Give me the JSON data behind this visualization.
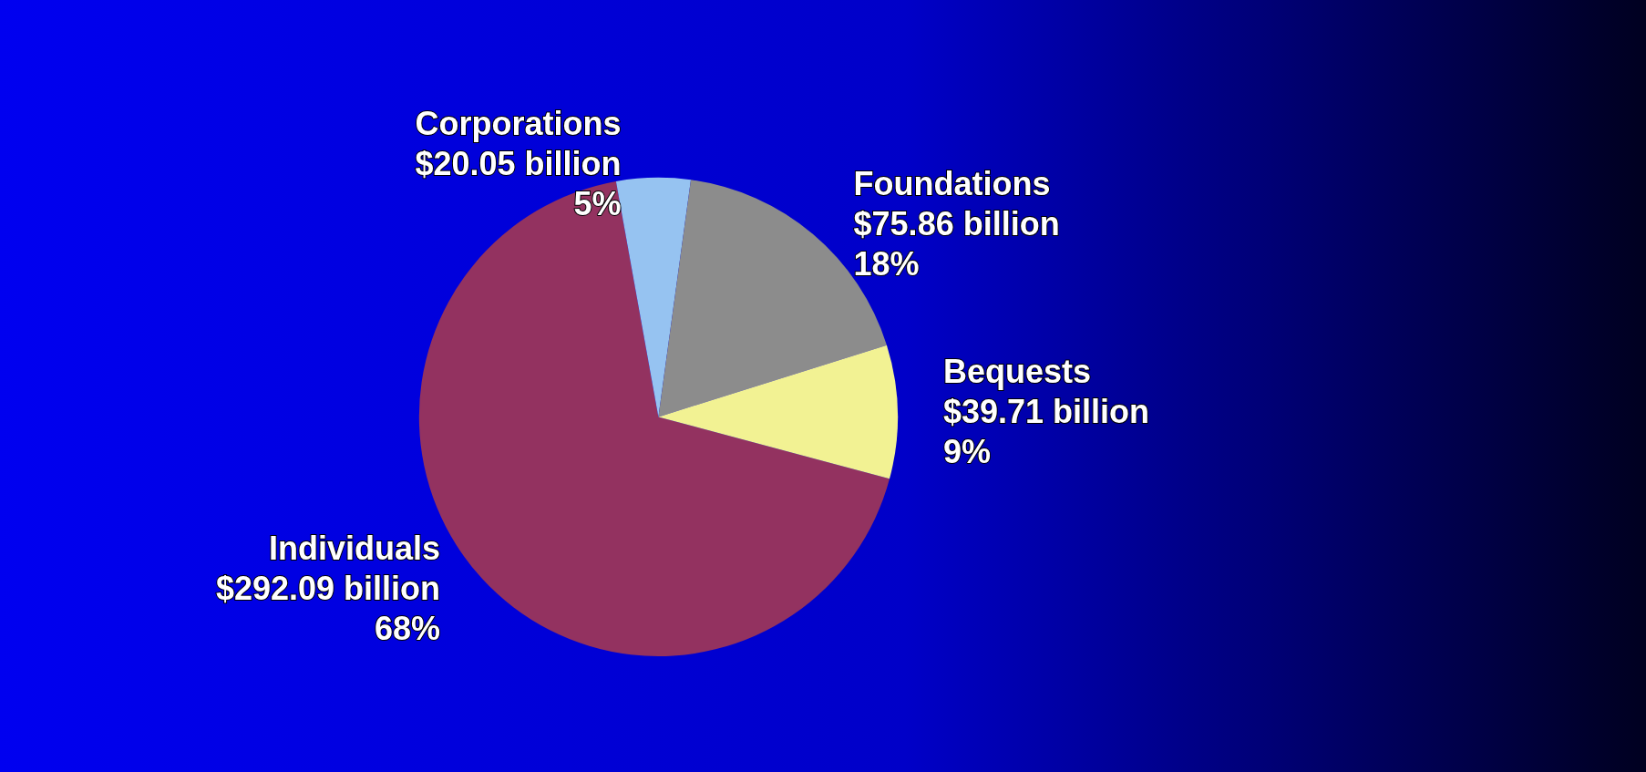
{
  "chart_data": {
    "type": "pie",
    "categories": [
      "Individuals",
      "Corporations",
      "Foundations",
      "Bequests"
    ],
    "values": [
      68,
      5,
      18,
      9
    ],
    "colors": [
      "#933260",
      "#96c3f1",
      "#8c8c8c",
      "#f2f293"
    ],
    "value_labels": [
      "$292.09 billion\n68%",
      "$20.05 billion\n5%",
      "$75.86 billion\n18%",
      "$39.71 billion\n9%"
    ],
    "legend": false
  }
}
